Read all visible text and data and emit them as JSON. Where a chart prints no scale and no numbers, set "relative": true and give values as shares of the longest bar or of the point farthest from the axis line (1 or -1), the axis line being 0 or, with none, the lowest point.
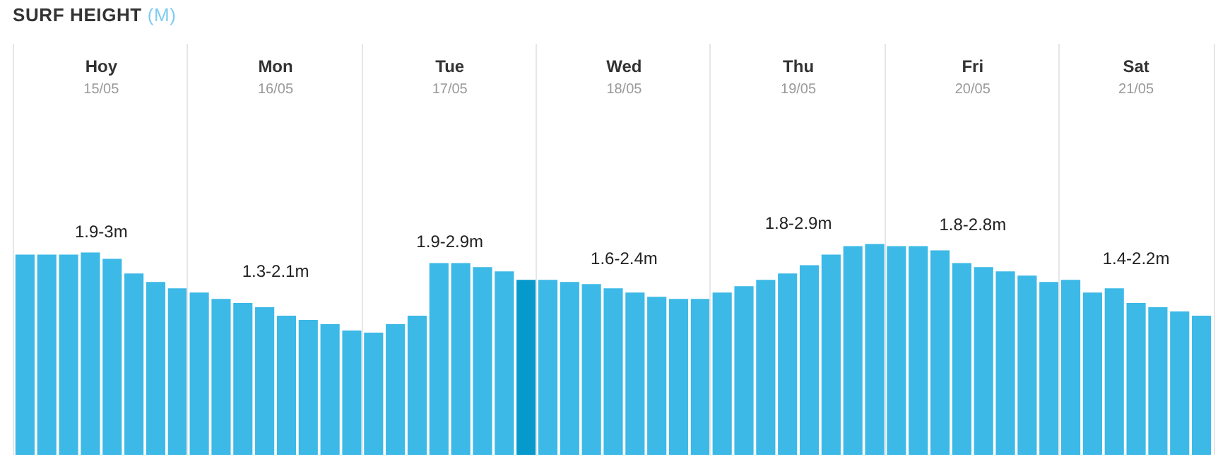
{
  "chart_data": {
    "type": "bar",
    "title": "SURF HEIGHT (M)",
    "relative": true,
    "categories": [
      null,
      null,
      null,
      null,
      null,
      null,
      null,
      null,
      null,
      null,
      null,
      null,
      null,
      null,
      null,
      null,
      null,
      null,
      null,
      null,
      null,
      null,
      null,
      null,
      null,
      null,
      null,
      null,
      null,
      null,
      null,
      null,
      null,
      null,
      null,
      null,
      null,
      null,
      null,
      null,
      null,
      null,
      null,
      null,
      null,
      null,
      null,
      null,
      null,
      null,
      null,
      null,
      null,
      null,
      null
    ],
    "values": [
      0.95,
      0.95,
      0.95,
      0.96,
      0.93,
      0.86,
      0.82,
      0.79,
      0.77,
      0.74,
      0.72,
      0.7,
      0.66,
      0.64,
      0.62,
      0.59,
      0.58,
      0.62,
      0.66,
      0.91,
      0.91,
      0.89,
      0.87,
      0.83,
      0.83,
      0.82,
      0.81,
      0.79,
      0.77,
      0.75,
      0.74,
      0.74,
      0.77,
      0.8,
      0.83,
      0.86,
      0.9,
      0.95,
      0.99,
      1,
      0.99,
      0.99,
      0.97,
      0.91,
      0.89,
      0.87,
      0.85,
      0.82,
      0.83,
      0.77,
      0.79,
      0.72,
      0.7,
      0.68,
      0.66
    ],
    "colors": [
      "#3cb9e6",
      "#3cb9e6",
      "#3cb9e6",
      "#3cb9e6",
      "#3cb9e6",
      "#3cb9e6",
      "#3cb9e6",
      "#3cb9e6",
      "#3cb9e6",
      "#3cb9e6",
      "#3cb9e6",
      "#3cb9e6",
      "#3cb9e6",
      "#3cb9e6",
      "#3cb9e6",
      "#3cb9e6",
      "#3cb9e6",
      "#3cb9e6",
      "#3cb9e6",
      "#3cb9e6",
      "#3cb9e6",
      "#3cb9e6",
      "#3cb9e6",
      "#0599cc",
      "#3cb9e6",
      "#3cb9e6",
      "#3cb9e6",
      "#3cb9e6",
      "#3cb9e6",
      "#3cb9e6",
      "#3cb9e6",
      "#3cb9e6",
      "#3cb9e6",
      "#3cb9e6",
      "#3cb9e6",
      "#3cb9e6",
      "#3cb9e6",
      "#3cb9e6",
      "#3cb9e6",
      "#3cb9e6",
      "#3cb9e6",
      "#3cb9e6",
      "#3cb9e6",
      "#3cb9e6",
      "#3cb9e6",
      "#3cb9e6",
      "#3cb9e6",
      "#3cb9e6",
      "#3cb9e6",
      "#3cb9e6",
      "#3cb9e6",
      "#3cb9e6",
      "#3cb9e6",
      "#3cb9e6",
      "#3cb9e6"
    ],
    "annotations": [
      "Hoy",
      "15/05",
      "1.9-3m",
      "Mon",
      "16/05",
      "1.3-2.1m",
      "Tue",
      "17/05",
      "1.9-2.9m",
      "Wed",
      "18/05",
      "1.6-2.4m",
      "Thu",
      "19/05",
      "1.8-2.9m",
      "Fri",
      "20/05",
      "1.8-2.8m",
      "Sat",
      "21/05",
      "1.4-2.2m"
    ],
    "data_labels": false
  }
}
